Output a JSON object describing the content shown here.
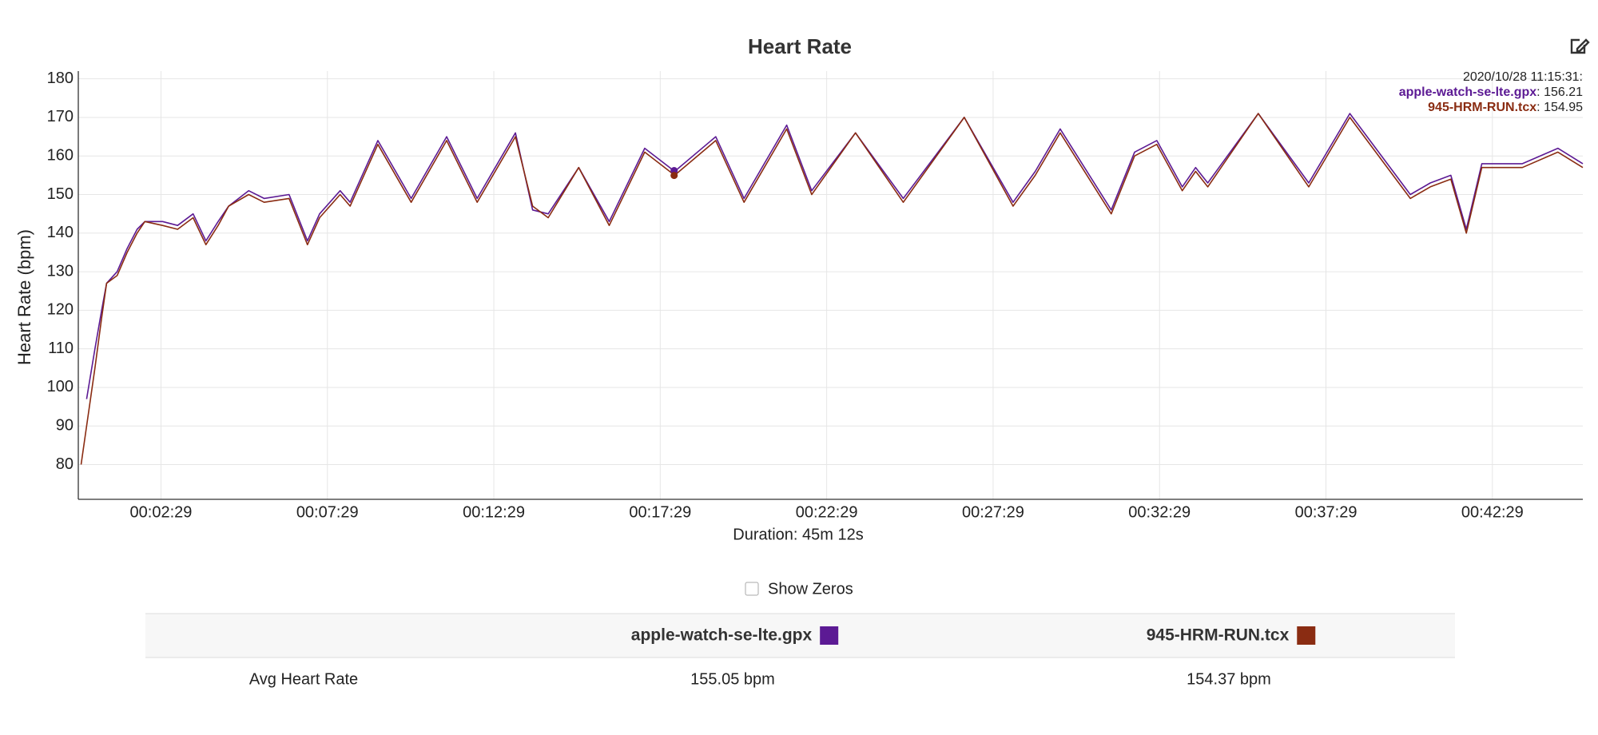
{
  "chart_data": {
    "type": "line",
    "title": "Heart Rate",
    "y_label": "Heart Rate (bpm)",
    "x_label": "Duration: 45m 12s",
    "x": [
      5,
      15,
      30,
      42,
      51,
      70,
      88,
      106,
      120,
      152,
      179,
      207,
      230,
      252,
      271,
      307,
      335,
      380,
      413,
      435,
      472,
      490,
      540,
      600,
      664,
      719,
      788,
      819,
      847,
      902,
      957,
      1021,
      1075,
      1149,
      1200,
      1277,
      1322,
      1401,
      1487,
      1597,
      1685,
      1725,
      1770,
      1862,
      1904,
      1944,
      1990,
      2014,
      2036,
      2127,
      2218,
      2292,
      2401,
      2437,
      2474,
      2502,
      2530,
      2603,
      2667,
      2712
    ],
    "series": [
      {
        "name": "apple-watch-se-lte.gpx",
        "color": "#5c1a94",
        "values": [
          null,
          97,
          110,
          120,
          127,
          130,
          136,
          141,
          143,
          143,
          142,
          145,
          138,
          143,
          147,
          151,
          149,
          150,
          138,
          145,
          151,
          148,
          164,
          149,
          165,
          149,
          166,
          146,
          145,
          157,
          143,
          162,
          156,
          165,
          149,
          168,
          151,
          166,
          149,
          170,
          148,
          156,
          167,
          146,
          161,
          164,
          152,
          157,
          153,
          171,
          153,
          171,
          150,
          153,
          155,
          141,
          158,
          158,
          162,
          158
        ]
      },
      {
        "name": "945-HRM-RUN.tcx",
        "color": "#8a2c12",
        "values": [
          80,
          90,
          105,
          118,
          127,
          129,
          135,
          140,
          143,
          142,
          141,
          144,
          137,
          142,
          147,
          150,
          148,
          149,
          137,
          144,
          150,
          147,
          163,
          148,
          164,
          148,
          165,
          147,
          144,
          157,
          142,
          161,
          155,
          164,
          148,
          167,
          150,
          166,
          148,
          170,
          147,
          155,
          166,
          145,
          160,
          163,
          151,
          156,
          152,
          171,
          152,
          170,
          149,
          152,
          154,
          140,
          157,
          157,
          161,
          157
        ]
      }
    ],
    "xlim": [
      0,
      2712
    ],
    "xticks": [
      {
        "value": 149,
        "label": "00:02:29"
      },
      {
        "value": 449,
        "label": "00:07:29"
      },
      {
        "value": 749,
        "label": "00:12:29"
      },
      {
        "value": 1049,
        "label": "00:17:29"
      },
      {
        "value": 1349,
        "label": "00:22:29"
      },
      {
        "value": 1649,
        "label": "00:27:29"
      },
      {
        "value": 1949,
        "label": "00:32:29"
      },
      {
        "value": 2249,
        "label": "00:37:29"
      },
      {
        "value": 2549,
        "label": "00:42:29"
      }
    ],
    "ylim": [
      71,
      182
    ],
    "yticks": [
      80,
      90,
      100,
      110,
      120,
      130,
      140,
      150,
      160,
      170,
      180
    ],
    "grid": true,
    "tooltip": {
      "timestamp": "2020/10/28 11:15:31:",
      "x": 1074,
      "values": [
        156.21,
        154.95
      ],
      "value_labels": [
        ": 156.21",
        ": 154.95"
      ]
    },
    "toggle": "Show Zeros",
    "table": {
      "row_label": "Avg Heart Rate",
      "cells": [
        "155.05 bpm",
        "154.37 bpm"
      ]
    }
  }
}
